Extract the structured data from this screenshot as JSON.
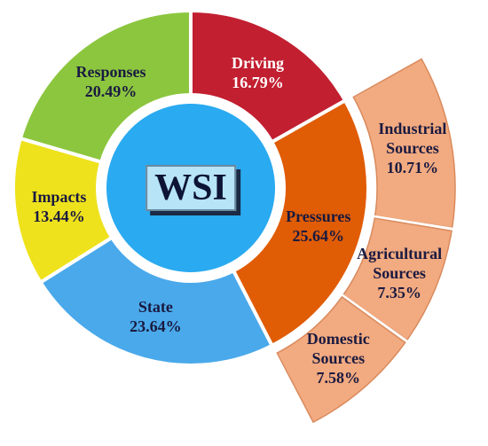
{
  "chart_data": {
    "type": "sunburst",
    "center_label": "WSI",
    "segments": [
      {
        "label": "Driving",
        "value": 16.79,
        "value_label": "16.79%",
        "color": "#c21f30",
        "text_color": "#ffffff"
      },
      {
        "label": "Pressures",
        "value": 25.64,
        "value_label": "25.64%",
        "color": "#e05c05",
        "text_color": "#1a1a40",
        "children": [
          {
            "label": "Industrial Sources",
            "value": 10.71,
            "value_label": "10.71%",
            "color": "#f2aa80",
            "text_color": "#1a1a40"
          },
          {
            "label": "Agricultural Sources",
            "value": 7.35,
            "value_label": "7.35%",
            "color": "#f2aa80",
            "text_color": "#1a1a40"
          },
          {
            "label": "Domestic Sources",
            "value": 7.58,
            "value_label": "7.58%",
            "color": "#f2aa80",
            "text_color": "#1a1a40"
          }
        ]
      },
      {
        "label": "State",
        "value": 23.64,
        "value_label": "23.64%",
        "color": "#4aa9ea",
        "text_color": "#1a1a40"
      },
      {
        "label": "Impacts",
        "value": 13.44,
        "value_label": "13.44%",
        "color": "#eee21c",
        "text_color": "#1a1a40"
      },
      {
        "label": "Responses",
        "value": 20.49,
        "value_label": "20.49%",
        "color": "#8cc63f",
        "text_color": "#1a1a40"
      }
    ]
  }
}
